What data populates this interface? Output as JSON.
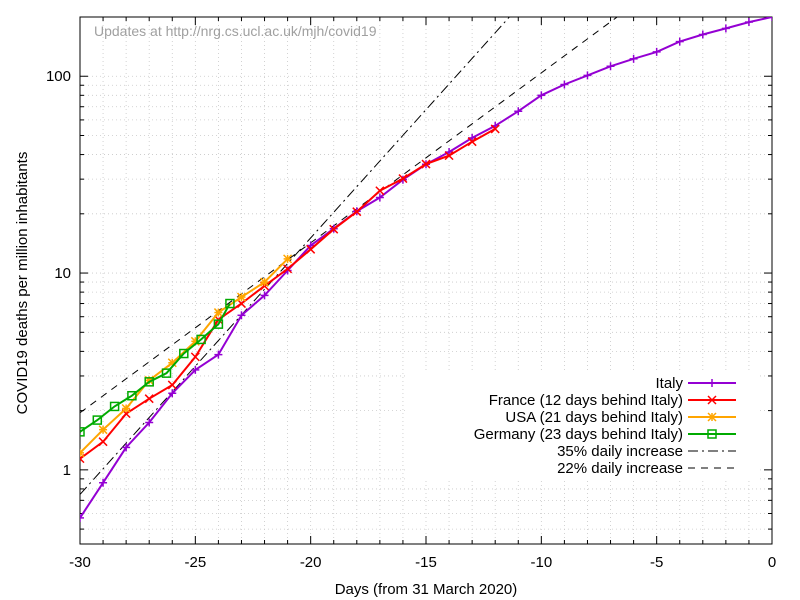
{
  "note": "Updates at http://nrg.cs.ucl.ac.uk/mjh/covid19",
  "chart_data": {
    "type": "line",
    "xlabel": "Days (from 31 March 2020)",
    "ylabel": "COVID19 deaths per million inhabitants",
    "xlim": [
      -30,
      0
    ],
    "ylim": [
      0.42,
      200
    ],
    "yscale": "log",
    "grid": true,
    "legend_position": "lower-right",
    "x_ticks": [
      -30,
      -25,
      -20,
      -15,
      -10,
      -5,
      0
    ],
    "x_tick_labels": [
      "-30",
      "-25",
      "-20",
      "-15",
      "-10",
      "-5",
      "0"
    ],
    "y_ticks": [
      1,
      10,
      100
    ],
    "y_tick_labels": [
      "1",
      "10",
      "100"
    ],
    "series": [
      {
        "name": "Italy",
        "color": "#9400d3",
        "marker": "plus",
        "x": [
          -30,
          -29,
          -28,
          -27,
          -26,
          -25,
          -24,
          -23,
          -22,
          -21,
          -20,
          -19,
          -18,
          -17,
          -16,
          -15,
          -14,
          -13,
          -12,
          -11,
          -10,
          -9,
          -8,
          -7,
          -6,
          -5,
          -4,
          -3,
          -2,
          -1,
          0
        ],
        "y": [
          0.57,
          0.86,
          1.3,
          1.74,
          2.45,
          3.22,
          3.85,
          6.1,
          7.7,
          10.3,
          13.8,
          16.8,
          20.6,
          24.2,
          29.8,
          35.7,
          41.2,
          48.6,
          56.0,
          66.4,
          80.0,
          90.8,
          101.0,
          112.4,
          122.6,
          133.0,
          150.0,
          163.0,
          175.0,
          188.5,
          200
        ]
      },
      {
        "name": "France (12 days behind Italy)",
        "color": "#ff0000",
        "marker": "cross",
        "x": [
          -30,
          -29,
          -28,
          -27,
          -26,
          -25,
          -24,
          -23,
          -22,
          -21,
          -20,
          -19,
          -18,
          -17,
          -16,
          -15,
          -14,
          -13,
          -12
        ],
        "y": [
          1.14,
          1.39,
          1.93,
          2.3,
          2.7,
          3.75,
          5.8,
          7.0,
          8.6,
          10.5,
          13.2,
          16.7,
          20.5,
          26.2,
          30.2,
          35.8,
          39.5,
          46.5,
          54.0
        ]
      },
      {
        "name": "USA (21 days behind Italy)",
        "color": "#ffa500",
        "marker": "asterisk",
        "x": [
          -30,
          -29,
          -28,
          -27,
          -26,
          -25,
          -24,
          -23,
          -22,
          -21
        ],
        "y": [
          1.22,
          1.6,
          2.05,
          2.85,
          3.5,
          4.5,
          6.3,
          7.55,
          9.0,
          11.8
        ]
      },
      {
        "name": "Germany (23 days behind Italy)",
        "color": "#00aa00",
        "marker": "square",
        "x": [
          -30,
          -29.25,
          -28.5,
          -27.75,
          -27,
          -26.25,
          -25.5,
          -24.75,
          -24,
          -23.5
        ],
        "y": [
          1.56,
          1.79,
          2.1,
          2.38,
          2.8,
          3.1,
          3.9,
          4.6,
          5.5,
          7.0
        ]
      }
    ],
    "reference_lines": [
      {
        "name": "35% daily increase",
        "dash": "dashdot",
        "color": "#000000",
        "x0": -30,
        "y0": 0.75,
        "rate": 1.35
      },
      {
        "name": "22% daily increase",
        "dash": "dashed",
        "color": "#000000",
        "x0": -30,
        "y0": 1.95,
        "rate": 1.22
      }
    ]
  }
}
